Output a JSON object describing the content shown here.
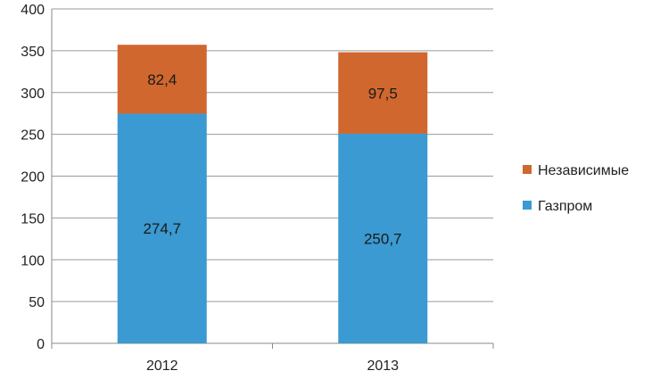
{
  "chart_data": {
    "type": "bar",
    "stacked": true,
    "categories": [
      "2012",
      "2013"
    ],
    "series": [
      {
        "name": "Газпром",
        "values": [
          274.7,
          250.7
        ],
        "labels": [
          "274,7",
          "250,7"
        ],
        "color": "#3A9AD1"
      },
      {
        "name": "Независимые",
        "values": [
          82.4,
          97.5
        ],
        "labels": [
          "82,4",
          "97,5"
        ],
        "color": "#D0672E"
      }
    ],
    "ylim": [
      0,
      400
    ],
    "yticks": [
      "0",
      "50",
      "100",
      "150",
      "200",
      "250",
      "300",
      "350",
      "400"
    ],
    "grid": true,
    "legend": "right"
  }
}
